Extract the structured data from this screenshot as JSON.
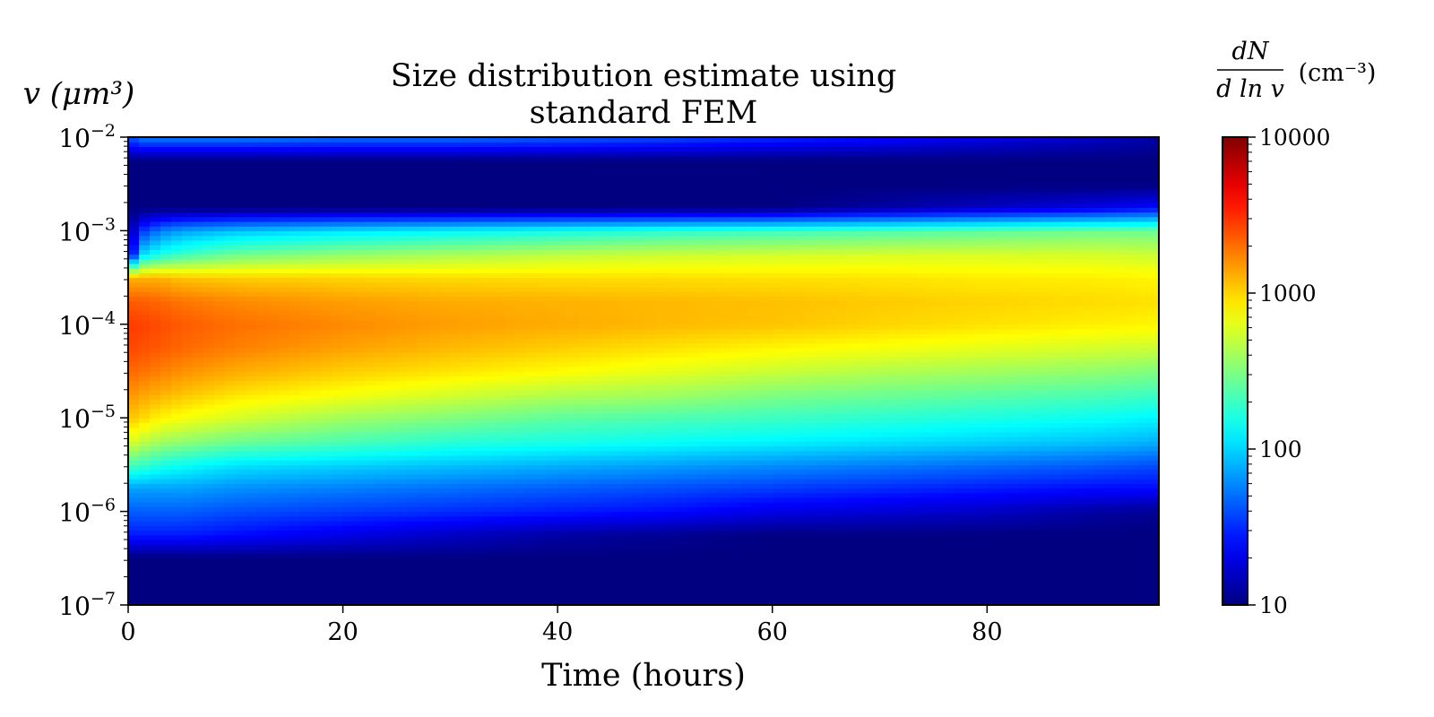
{
  "chart_data": {
    "type": "heatmap",
    "title_lines": [
      "Size distribution estimate using",
      "standard FEM"
    ],
    "xlabel": "Time (hours)",
    "ylabel": "v (μm³)",
    "colorbar_label": {
      "numerator": "dN",
      "denominator": "d ln v",
      "units": "(cm⁻³)"
    },
    "xlim": [
      0,
      96
    ],
    "x_ticks": [
      0,
      20,
      40,
      60,
      80
    ],
    "x_tick_labels": [
      "0",
      "20",
      "40",
      "60",
      "80"
    ],
    "y_scale": "log",
    "ylim": [
      1e-07,
      0.01
    ],
    "y_ticks": [
      1e-07,
      1e-06,
      1e-05,
      0.0001,
      0.001,
      0.01
    ],
    "y_tick_labels": [
      {
        "base": "10",
        "exp": "−7"
      },
      {
        "base": "10",
        "exp": "−6"
      },
      {
        "base": "10",
        "exp": "−5"
      },
      {
        "base": "10",
        "exp": "−4"
      },
      {
        "base": "10",
        "exp": "−3"
      },
      {
        "base": "10",
        "exp": "−2"
      }
    ],
    "color_scale": "log",
    "colormap": "jet",
    "clim": [
      10,
      10000
    ],
    "colorbar_ticks": [
      10,
      100,
      1000,
      10000
    ],
    "colorbar_tick_labels": [
      "10",
      "100",
      "1000",
      "10000"
    ],
    "grid": false,
    "jet_stops": [
      "#000080",
      "#0000ff",
      "#00ffff",
      "#ffff00",
      "#ff0000",
      "#800000"
    ],
    "value_grid": {
      "description_units": "log10 of dN/dlnv, rows from v=1e-7 (first) to v=1e-2 (last) in steps of 0.25 decade; columns at times listed in time_points",
      "time_points": [
        0,
        1,
        3,
        5,
        10,
        20,
        30,
        40,
        50,
        60,
        70,
        80,
        90,
        96
      ],
      "log_v": [
        -7,
        -6.75,
        -6.5,
        -6.25,
        -6,
        -5.75,
        -5.5,
        -5.25,
        -5,
        -4.75,
        -4.5,
        -4.25,
        -4,
        -3.75,
        -3.5,
        -3.25,
        -3,
        -2.75,
        -2.5,
        -2.25,
        -2
      ],
      "log_values": [
        [
          1.0,
          1.0,
          1.0,
          1.0,
          1.0,
          1.0,
          1.0,
          1.0,
          1.0,
          1.0,
          1.0,
          1.0,
          1.0,
          1.0
        ],
        [
          1.0,
          1.0,
          1.0,
          1.0,
          1.0,
          1.0,
          1.0,
          1.0,
          1.0,
          1.0,
          1.0,
          1.0,
          1.0,
          1.0
        ],
        [
          1.0,
          1.0,
          1.0,
          1.0,
          1.0,
          1.0,
          1.0,
          1.0,
          1.0,
          1.0,
          1.0,
          1.0,
          1.0,
          1.0
        ],
        [
          1.45,
          1.45,
          1.45,
          1.45,
          1.4,
          1.3,
          1.2,
          1.1,
          1.05,
          1.0,
          1.0,
          1.0,
          1.0,
          1.0
        ],
        [
          1.65,
          1.65,
          1.65,
          1.65,
          1.6,
          1.55,
          1.5,
          1.45,
          1.4,
          1.3,
          1.25,
          1.2,
          1.1,
          1.05
        ],
        [
          1.85,
          1.85,
          1.85,
          1.85,
          1.8,
          1.75,
          1.7,
          1.65,
          1.6,
          1.55,
          1.5,
          1.45,
          1.4,
          1.4
        ],
        [
          2.35,
          2.3,
          2.2,
          2.15,
          2.05,
          2.0,
          1.95,
          1.9,
          1.85,
          1.8,
          1.75,
          1.7,
          1.65,
          1.6
        ],
        [
          2.8,
          2.7,
          2.6,
          2.55,
          2.45,
          2.35,
          2.25,
          2.2,
          2.15,
          2.1,
          2.05,
          2.0,
          1.95,
          1.9
        ],
        [
          3.05,
          3.0,
          2.9,
          2.85,
          2.75,
          2.6,
          2.5,
          2.4,
          2.35,
          2.3,
          2.25,
          2.2,
          2.15,
          2.1
        ],
        [
          3.2,
          3.15,
          3.1,
          3.05,
          2.95,
          2.85,
          2.75,
          2.65,
          2.6,
          2.5,
          2.45,
          2.4,
          2.35,
          2.3
        ],
        [
          3.32,
          3.3,
          3.25,
          3.2,
          3.12,
          3.02,
          2.95,
          2.88,
          2.8,
          2.72,
          2.65,
          2.6,
          2.55,
          2.5
        ],
        [
          3.42,
          3.4,
          3.36,
          3.32,
          3.25,
          3.15,
          3.08,
          3.02,
          2.96,
          2.9,
          2.85,
          2.8,
          2.75,
          2.72
        ],
        [
          3.45,
          3.44,
          3.4,
          3.36,
          3.3,
          3.22,
          3.16,
          3.12,
          3.08,
          3.05,
          3.0,
          2.96,
          2.92,
          2.9
        ],
        [
          3.35,
          3.35,
          3.32,
          3.28,
          3.22,
          3.16,
          3.12,
          3.1,
          3.08,
          3.06,
          3.03,
          3.0,
          2.98,
          2.96
        ],
        [
          3.1,
          3.1,
          3.1,
          3.05,
          3.02,
          3.0,
          2.98,
          2.97,
          2.97,
          2.96,
          2.95,
          2.93,
          2.92,
          2.9
        ],
        [
          1.0,
          2.0,
          2.2,
          2.3,
          2.45,
          2.55,
          2.62,
          2.68,
          2.72,
          2.74,
          2.76,
          2.76,
          2.75,
          2.72
        ],
        [
          1.0,
          1.5,
          1.75,
          1.85,
          1.95,
          2.05,
          2.12,
          2.18,
          2.25,
          2.3,
          2.35,
          2.4,
          2.45,
          2.45
        ],
        [
          1.0,
          1.0,
          1.0,
          1.0,
          1.0,
          1.0,
          1.0,
          1.0,
          1.0,
          1.0,
          1.1,
          1.2,
          1.3,
          1.4
        ],
        [
          1.0,
          1.0,
          1.0,
          1.0,
          1.0,
          1.0,
          1.0,
          1.0,
          1.0,
          1.0,
          1.0,
          1.0,
          1.0,
          1.0
        ],
        [
          1.0,
          1.0,
          1.0,
          1.0,
          1.0,
          1.0,
          1.0,
          1.0,
          1.0,
          1.0,
          1.0,
          1.0,
          1.0,
          1.0
        ],
        [
          1.55,
          1.75,
          1.75,
          1.75,
          1.75,
          1.7,
          1.7,
          1.65,
          1.6,
          1.5,
          1.4,
          1.3,
          1.2,
          1.1
        ]
      ]
    }
  }
}
